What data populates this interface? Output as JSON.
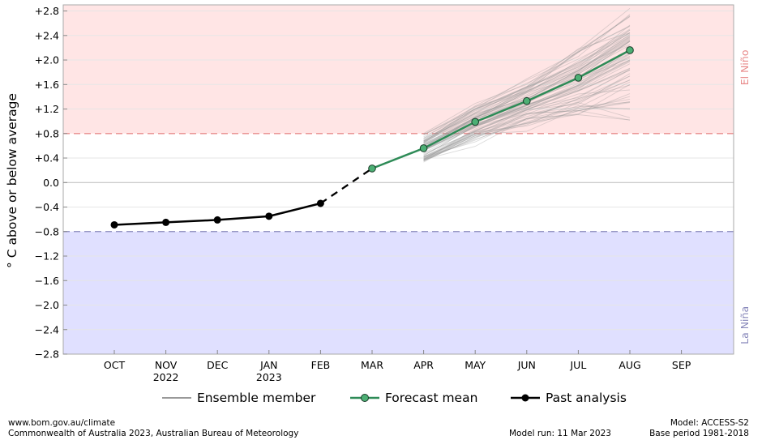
{
  "chart_data": {
    "type": "line",
    "ylabel": "° C above or below average",
    "xlim": [
      "OCT",
      "SEP"
    ],
    "ylim": [
      -2.8,
      2.9
    ],
    "y_ticks": [
      "+2.8",
      "+2.4",
      "+2.0",
      "+1.6",
      "+1.2",
      "+0.8",
      "+0.4",
      "0.0",
      "−0.4",
      "−0.8",
      "−1.2",
      "−1.6",
      "−2.0",
      "−2.4",
      "−2.8"
    ],
    "x_ticks": [
      {
        "label": "OCT",
        "year": ""
      },
      {
        "label": "NOV",
        "year": "2022"
      },
      {
        "label": "DEC",
        "year": ""
      },
      {
        "label": "JAN",
        "year": "2023"
      },
      {
        "label": "FEB",
        "year": ""
      },
      {
        "label": "MAR",
        "year": ""
      },
      {
        "label": "APR",
        "year": ""
      },
      {
        "label": "MAY",
        "year": ""
      },
      {
        "label": "JUN",
        "year": ""
      },
      {
        "label": "JUL",
        "year": ""
      },
      {
        "label": "AUG",
        "year": ""
      },
      {
        "label": "SEP",
        "year": ""
      }
    ],
    "thresholds": [
      {
        "label": "El Niño",
        "value": 0.8,
        "color": "#e88a8a",
        "band_color": "#ffe5e5"
      },
      {
        "label": "La Niña",
        "value": -0.8,
        "color": "#8888bb",
        "band_color": "#e0e0ff"
      }
    ],
    "series": [
      {
        "name": "Past analysis",
        "color": "#000000",
        "x": [
          "OCT",
          "NOV",
          "DEC",
          "JAN",
          "FEB"
        ],
        "values": [
          -0.69,
          -0.65,
          -0.61,
          -0.55,
          -0.34
        ]
      },
      {
        "name": "Forecast mean",
        "color": "#2e8b57",
        "x": [
          "MAR",
          "APR",
          "MAY",
          "JUN",
          "JUL",
          "AUG"
        ],
        "values": [
          0.23,
          0.56,
          0.99,
          1.33,
          1.71,
          2.16
        ]
      },
      {
        "name": "Ensemble member",
        "color": "#999999",
        "x": [
          "MAR",
          "APR",
          "MAY",
          "JUN",
          "JUL",
          "AUG"
        ],
        "spread_low": [
          0.23,
          0.25,
          0.6,
          0.85,
          0.9,
          1.0
        ],
        "spread_high": [
          0.23,
          0.9,
          1.4,
          1.8,
          2.3,
          2.9
        ]
      }
    ]
  },
  "footer": {
    "url": "www.bom.gov.au/climate",
    "copyright": "Commonwealth of Australia 2023, Australian Bureau of Meteorology",
    "model_run": "Model run: 11 Mar 2023",
    "model": "Model: ACCESS-S2",
    "base_period": "Base period 1981-2018"
  },
  "colors": {
    "el_nino_band": "#ffe5e5",
    "la_nina_band": "#e0e0ff",
    "forecast": "#2e8b57",
    "past": "#000000"
  }
}
